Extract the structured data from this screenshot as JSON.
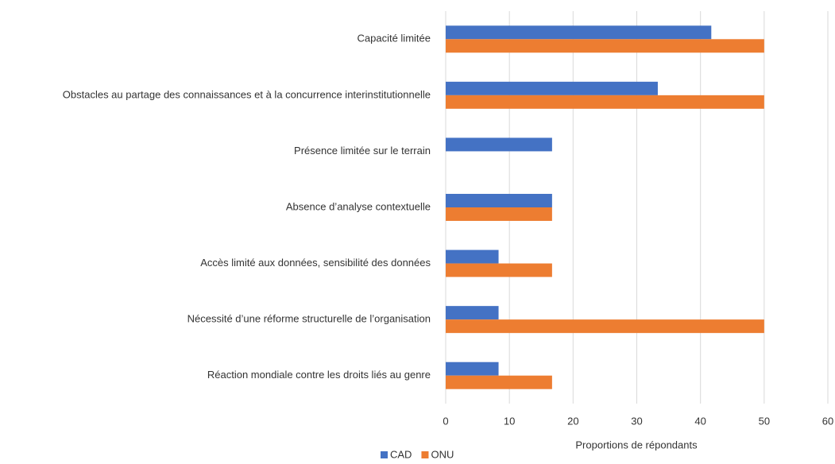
{
  "chart_data": {
    "type": "barh",
    "categories": [
      "Capacité limitée",
      "Obstacles au partage des connaissances et à la concurrence interinstitutionnelle",
      "Présence limitée sur le terrain",
      "Absence d’analyse contextuelle",
      "Accès limité aux données, sensibilité des données",
      "Nécessité d’une réforme structurelle de l’organisation",
      "Réaction mondiale contre les droits liés au genre"
    ],
    "series": [
      {
        "name": "CAD",
        "color": "#4472c4",
        "values": [
          41.7,
          33.3,
          16.7,
          16.7,
          8.3,
          8.3,
          8.3
        ]
      },
      {
        "name": "ONU",
        "color": "#ed7d31",
        "values": [
          50,
          50,
          0,
          16.7,
          16.7,
          50,
          16.7
        ]
      }
    ],
    "xlabel": "Proportions de répondants",
    "xlim": [
      0,
      60
    ],
    "xticks": [
      0,
      10,
      20,
      30,
      40,
      50,
      60
    ],
    "grid": true,
    "legend": "bottom"
  }
}
